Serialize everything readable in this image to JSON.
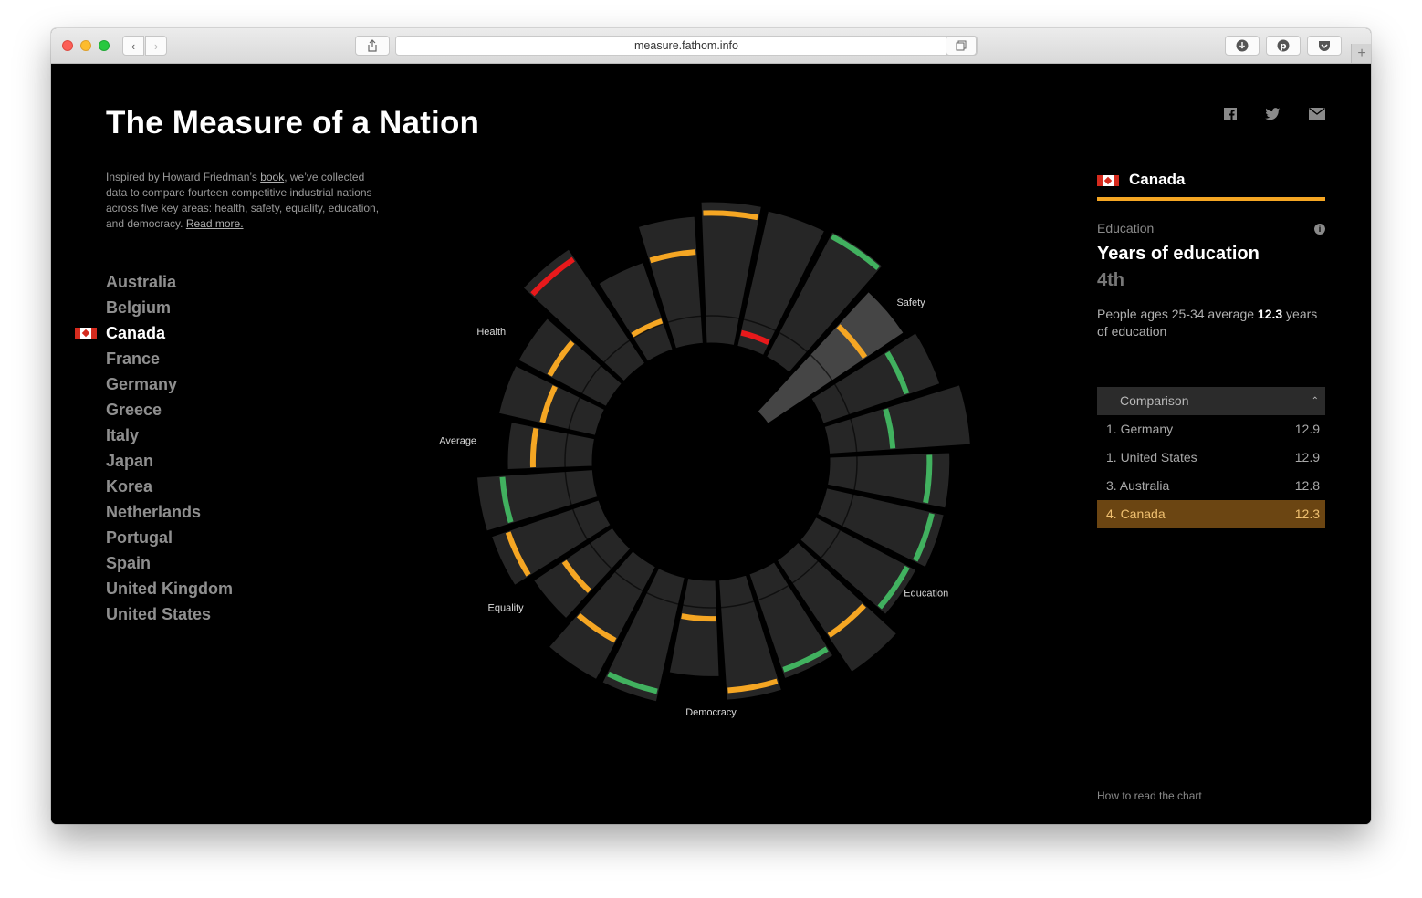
{
  "browser": {
    "url": "measure.fathom.info"
  },
  "page": {
    "title": "The Measure of a Nation",
    "intro_before": "Inspired by Howard Friedman’s ",
    "intro_link_book": "book",
    "intro_after": ", we’ve collected data to compare fourteen competitive industrial nations across five key areas: health, safety, equality, education, and democracy. ",
    "intro_link_read_more": "Read more.",
    "how_to_read": "How to read the chart"
  },
  "countries": [
    "Australia",
    "Belgium",
    "Canada",
    "France",
    "Germany",
    "Greece",
    "Italy",
    "Japan",
    "Korea",
    "Netherlands",
    "Portugal",
    "Spain",
    "United Kingdom",
    "United States"
  ],
  "selected_country": "Canada",
  "panel": {
    "country": "Canada",
    "category": "Education",
    "metric": "Years of education",
    "rank": "4th",
    "desc_before": "People ages 25-34 average ",
    "desc_value": "12.3",
    "desc_after": " years of education",
    "dropdown_label": "Comparison",
    "comparison": [
      {
        "rank": "1.",
        "country": "Germany",
        "value": "12.9"
      },
      {
        "rank": "1.",
        "country": "United States",
        "value": "12.9"
      },
      {
        "rank": "3.",
        "country": "Australia",
        "value": "12.8"
      },
      {
        "rank": "4.",
        "country": "Canada",
        "value": "12.3"
      }
    ]
  },
  "colors": {
    "good": "#41b15f",
    "mid": "#f5a623",
    "poor": "#e8191b",
    "accent": "#f5a623",
    "highlight": "#6b4512"
  },
  "chart_data": {
    "type": "radial_bar",
    "labels": [
      "Safety",
      "Education",
      "Democracy",
      "Equality",
      "Average",
      "Health"
    ],
    "segments": [
      {
        "category": "Health",
        "value": 0.82,
        "marker": 0.78,
        "rating": "good"
      },
      {
        "category": "Health",
        "value": 0.6,
        "marker": 0.7,
        "rating": "mid"
      },
      {
        "category": "Health",
        "value": 0.7,
        "marker": 0.55,
        "rating": "mid"
      },
      {
        "category": "Health",
        "value": 0.7,
        "marker": 0.65,
        "rating": "mid"
      },
      {
        "category": "Health",
        "value": 0.97,
        "marker": 0.92,
        "rating": "poor"
      },
      {
        "category": "Health",
        "value": 0.65,
        "marker": 0.33,
        "rating": "mid"
      },
      {
        "category": "Safety",
        "value": 0.9,
        "marker": 0.72,
        "rating": "mid"
      },
      {
        "category": "Safety",
        "value": 1.0,
        "marker": 0.92,
        "rating": "mid"
      },
      {
        "category": "Safety",
        "value": 0.98,
        "marker": 0.1,
        "rating": "poor"
      },
      {
        "category": "Safety",
        "value": 1.0,
        "marker": 0.97,
        "rating": "good"
      },
      {
        "category": "Education",
        "value": 0.8,
        "marker": 0.72,
        "rating": "mid",
        "expanded": true
      },
      {
        "category": "Education",
        "value": 0.87,
        "marker": 0.72,
        "rating": "good"
      },
      {
        "category": "Education",
        "value": 1.0,
        "marker": 0.45,
        "rating": "good"
      },
      {
        "category": "Education",
        "value": 0.85,
        "marker": 0.83,
        "rating": "good"
      },
      {
        "category": "Education",
        "value": 0.85,
        "marker": 0.9,
        "rating": "good"
      },
      {
        "category": "Education",
        "value": 0.8,
        "marker": 0.92,
        "rating": "good"
      },
      {
        "category": "Democracy",
        "value": 0.95,
        "marker": 0.68,
        "rating": "mid"
      },
      {
        "category": "Democracy",
        "value": 0.78,
        "marker": 0.92,
        "rating": "good"
      },
      {
        "category": "Democracy",
        "value": 0.85,
        "marker": 0.92,
        "rating": "mid"
      },
      {
        "category": "Equality",
        "value": 0.68,
        "marker": 0.4,
        "rating": "mid"
      },
      {
        "category": "Equality",
        "value": 0.9,
        "marker": 0.92,
        "rating": "good"
      },
      {
        "category": "Equality",
        "value": 0.9,
        "marker": 0.66,
        "rating": "mid"
      },
      {
        "category": "Equality",
        "value": 0.67,
        "marker": 0.62,
        "rating": "mid"
      },
      {
        "category": "Average",
        "value": 0.8,
        "marker": 0.85,
        "rating": "mid"
      }
    ]
  }
}
